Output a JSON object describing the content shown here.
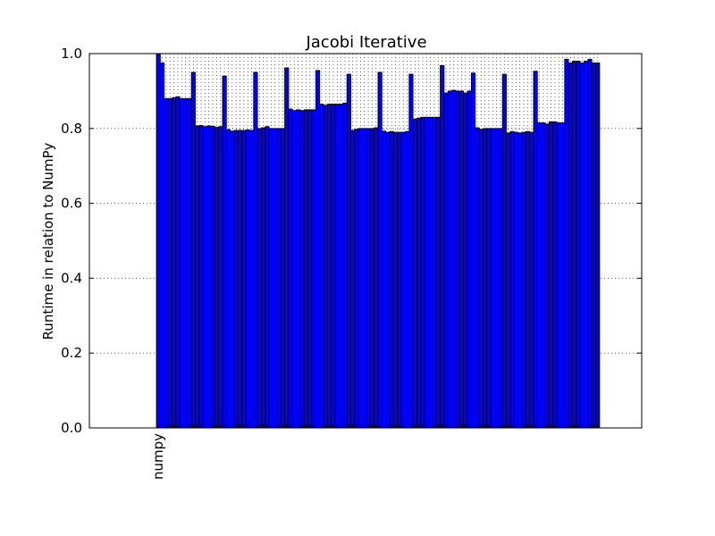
{
  "chart_data": {
    "type": "bar",
    "title": "Jacobi Iterative",
    "ylabel": "Runtime in relation to NumPy",
    "categories": [
      "numpy",
      null,
      null,
      null,
      null,
      null,
      null,
      null,
      null,
      null,
      null,
      null,
      null,
      null,
      null,
      null,
      null,
      null,
      null,
      null,
      null,
      null,
      null,
      null,
      null,
      null,
      null,
      null,
      null,
      null,
      null,
      null,
      null,
      null,
      null,
      null,
      null,
      null,
      null,
      null,
      null,
      null,
      null,
      null,
      null,
      null,
      null,
      null,
      null,
      null,
      null,
      null,
      null,
      null,
      null,
      null,
      null,
      null,
      null,
      null,
      null,
      null,
      null,
      null,
      null,
      null,
      null,
      null,
      null,
      null,
      null,
      null,
      null,
      null,
      null,
      null,
      null,
      null,
      null,
      null,
      null,
      null,
      null,
      null,
      null,
      null,
      null,
      null,
      null,
      null,
      null,
      null,
      null,
      null,
      null,
      null,
      null,
      null,
      null,
      null,
      null,
      null,
      null,
      null,
      null,
      null,
      null,
      null,
      null,
      null,
      null,
      null,
      null,
      null
    ],
    "values": [
      1.0,
      0.975,
      0.88,
      0.88,
      0.882,
      0.885,
      0.88,
      0.88,
      0.88,
      0.95,
      0.807,
      0.808,
      0.805,
      0.807,
      0.806,
      0.803,
      0.805,
      0.94,
      0.797,
      0.793,
      0.795,
      0.795,
      0.795,
      0.796,
      0.795,
      0.95,
      0.8,
      0.802,
      0.805,
      0.8,
      0.8,
      0.8,
      0.8,
      0.962,
      0.852,
      0.848,
      0.85,
      0.848,
      0.85,
      0.85,
      0.85,
      0.955,
      0.865,
      0.862,
      0.865,
      0.865,
      0.865,
      0.865,
      0.868,
      0.945,
      0.795,
      0.798,
      0.8,
      0.8,
      0.8,
      0.8,
      0.802,
      0.95,
      0.793,
      0.79,
      0.792,
      0.79,
      0.79,
      0.79,
      0.792,
      0.945,
      0.825,
      0.828,
      0.83,
      0.83,
      0.83,
      0.83,
      0.83,
      0.968,
      0.895,
      0.9,
      0.902,
      0.9,
      0.9,
      0.895,
      0.9,
      0.948,
      0.802,
      0.798,
      0.8,
      0.8,
      0.8,
      0.8,
      0.8,
      0.945,
      0.788,
      0.792,
      0.79,
      0.788,
      0.79,
      0.792,
      0.79,
      0.953,
      0.815,
      0.815,
      0.812,
      0.818,
      0.818,
      0.815,
      0.815,
      0.985,
      0.975,
      0.98,
      0.98,
      0.975,
      0.98,
      0.985,
      0.975,
      0.975
    ],
    "color": "#0000ff",
    "ylim": [
      0,
      1
    ],
    "yticks": [
      {
        "value": 0,
        "label": "0.0"
      },
      0.2,
      0.4,
      0.6,
      0.8,
      {
        "value": 1,
        "label": "1.0"
      }
    ],
    "grid": true
  }
}
